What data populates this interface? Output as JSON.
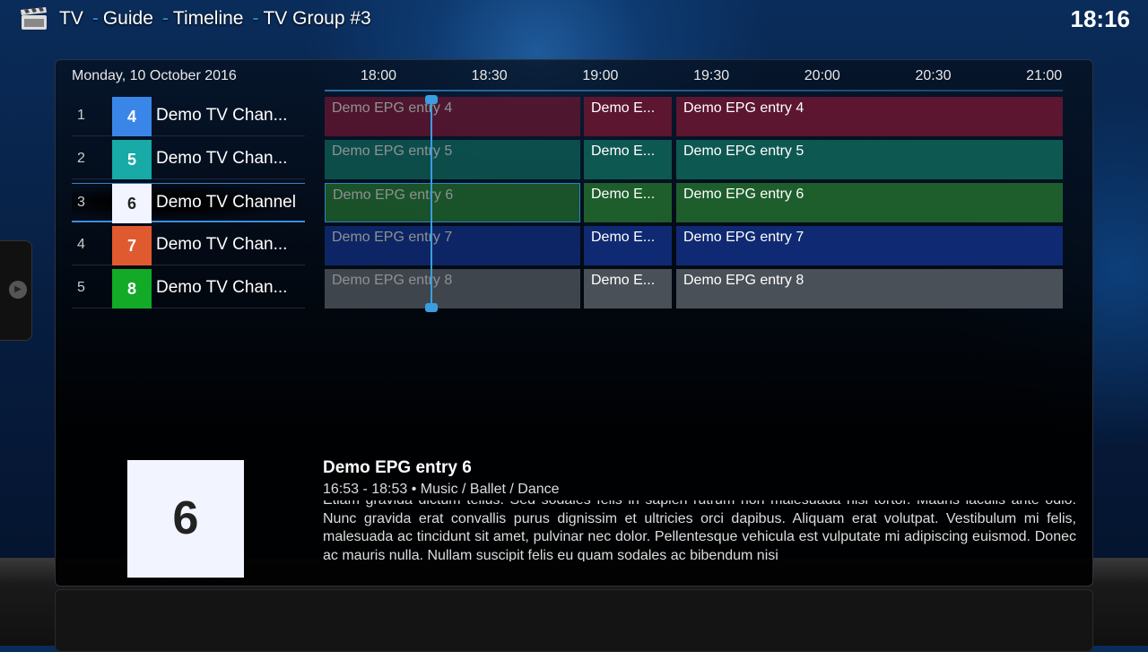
{
  "header": {
    "breadcrumb": [
      "TV",
      "Guide",
      "Timeline",
      "TV Group #3"
    ],
    "clock": "18:16",
    "icon": "clapperboard-icon"
  },
  "guide": {
    "date": "Monday, 10 October 2016",
    "times": [
      "18:00",
      "18:30",
      "19:00",
      "19:30",
      "20:00",
      "20:30",
      "21:00"
    ],
    "channels": [
      {
        "index": "1",
        "number": "4",
        "name": "Demo TV Chan...",
        "color": "#3a86e8",
        "text": "#fff",
        "row": "#5c1630",
        "entries": [
          "Demo EPG entry 4",
          "Demo E...",
          "Demo EPG entry 4"
        ]
      },
      {
        "index": "2",
        "number": "5",
        "name": "Demo TV Chan...",
        "color": "#17aaa6",
        "text": "#fff",
        "row": "#0e5852",
        "entries": [
          "Demo EPG entry 5",
          "Demo E...",
          "Demo EPG entry 5"
        ]
      },
      {
        "index": "3",
        "number": "6",
        "name": "Demo TV Channel",
        "color": "#f2f5ff",
        "text": "#222",
        "row": "#1e5e2c",
        "entries": [
          "Demo EPG entry 6",
          "Demo E...",
          "Demo EPG entry 6"
        ]
      },
      {
        "index": "4",
        "number": "7",
        "name": "Demo TV Chan...",
        "color": "#e05a30",
        "text": "#fff",
        "row": "#0f2a72",
        "entries": [
          "Demo EPG entry 7",
          "Demo E...",
          "Demo EPG entry 7"
        ]
      },
      {
        "index": "5",
        "number": "8",
        "name": "Demo TV Chan...",
        "color": "#13aa28",
        "text": "#fff",
        "row": "#4a5058",
        "entries": [
          "Demo EPG entry 8",
          "Demo E...",
          "Demo EPG entry 8"
        ]
      }
    ],
    "selected_index": 2
  },
  "info": {
    "thumb": "6",
    "title": "Demo EPG entry 6",
    "meta": "16:53 - 18:53 • Music / Ballet / Dance",
    "plot": "Etiam gravida dictum tellus. Sed sodales felis in sapien rutrum non malesuada nisi tortor. Mauris iaculis ante odio. Nunc gravida erat convallis purus dignissim et ultricies orci dapibus. Aliquam erat volutpat. Vestibulum mi felis, malesuada ac tincidunt sit amet, pulvinar nec dolor. Pellentesque vehicula est vulputate mi adipiscing euismod. Donec ac mauris nulla. Nullam suscipit felis eu quam sodales ac bibendum nisi"
  }
}
